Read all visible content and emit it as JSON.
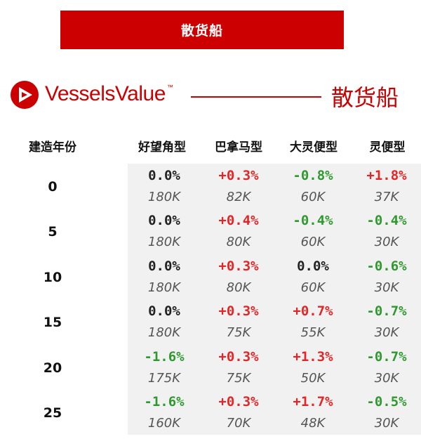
{
  "banner": {
    "title": "散货船"
  },
  "brand": {
    "logo_text": "VesselsValue",
    "trademark": "™",
    "category": "散货船"
  },
  "table": {
    "year_header": "建造年份",
    "columns": [
      "好望角型",
      "巴拿马型",
      "大灵便型",
      "灵便型"
    ],
    "rows": [
      {
        "year": "0",
        "cells": [
          {
            "pct": "0.0%",
            "val": "180K",
            "sign": "zero"
          },
          {
            "pct": "+0.3%",
            "val": "82K",
            "sign": "pos"
          },
          {
            "pct": "-0.8%",
            "val": "60K",
            "sign": "neg"
          },
          {
            "pct": "+1.8%",
            "val": "37K",
            "sign": "pos"
          }
        ]
      },
      {
        "year": "5",
        "cells": [
          {
            "pct": "0.0%",
            "val": "180K",
            "sign": "zero"
          },
          {
            "pct": "+0.4%",
            "val": "80K",
            "sign": "pos"
          },
          {
            "pct": "-0.4%",
            "val": "60K",
            "sign": "neg"
          },
          {
            "pct": "-0.4%",
            "val": "30K",
            "sign": "neg"
          }
        ]
      },
      {
        "year": "10",
        "cells": [
          {
            "pct": "0.0%",
            "val": "180K",
            "sign": "zero"
          },
          {
            "pct": "+0.3%",
            "val": "80K",
            "sign": "pos"
          },
          {
            "pct": "0.0%",
            "val": "60K",
            "sign": "zero"
          },
          {
            "pct": "-0.6%",
            "val": "30K",
            "sign": "neg"
          }
        ]
      },
      {
        "year": "15",
        "cells": [
          {
            "pct": "0.0%",
            "val": "180K",
            "sign": "zero"
          },
          {
            "pct": "+0.3%",
            "val": "75K",
            "sign": "pos"
          },
          {
            "pct": "+0.7%",
            "val": "55K",
            "sign": "pos"
          },
          {
            "pct": "-0.7%",
            "val": "30K",
            "sign": "neg"
          }
        ]
      },
      {
        "year": "20",
        "cells": [
          {
            "pct": "-1.6%",
            "val": "175K",
            "sign": "neg"
          },
          {
            "pct": "+0.3%",
            "val": "75K",
            "sign": "pos"
          },
          {
            "pct": "+1.3%",
            "val": "50K",
            "sign": "pos"
          },
          {
            "pct": "-0.7%",
            "val": "30K",
            "sign": "neg"
          }
        ]
      },
      {
        "year": "25",
        "cells": [
          {
            "pct": "-1.6%",
            "val": "160K",
            "sign": "neg"
          },
          {
            "pct": "+0.3%",
            "val": "70K",
            "sign": "pos"
          },
          {
            "pct": "+1.7%",
            "val": "48K",
            "sign": "pos"
          },
          {
            "pct": "-0.5%",
            "val": "30K",
            "sign": "neg"
          }
        ]
      }
    ]
  },
  "colors": {
    "brand_red": "#cc0000",
    "positive": "#e42525",
    "negative": "#2e9a2e",
    "neutral": "#222222"
  }
}
